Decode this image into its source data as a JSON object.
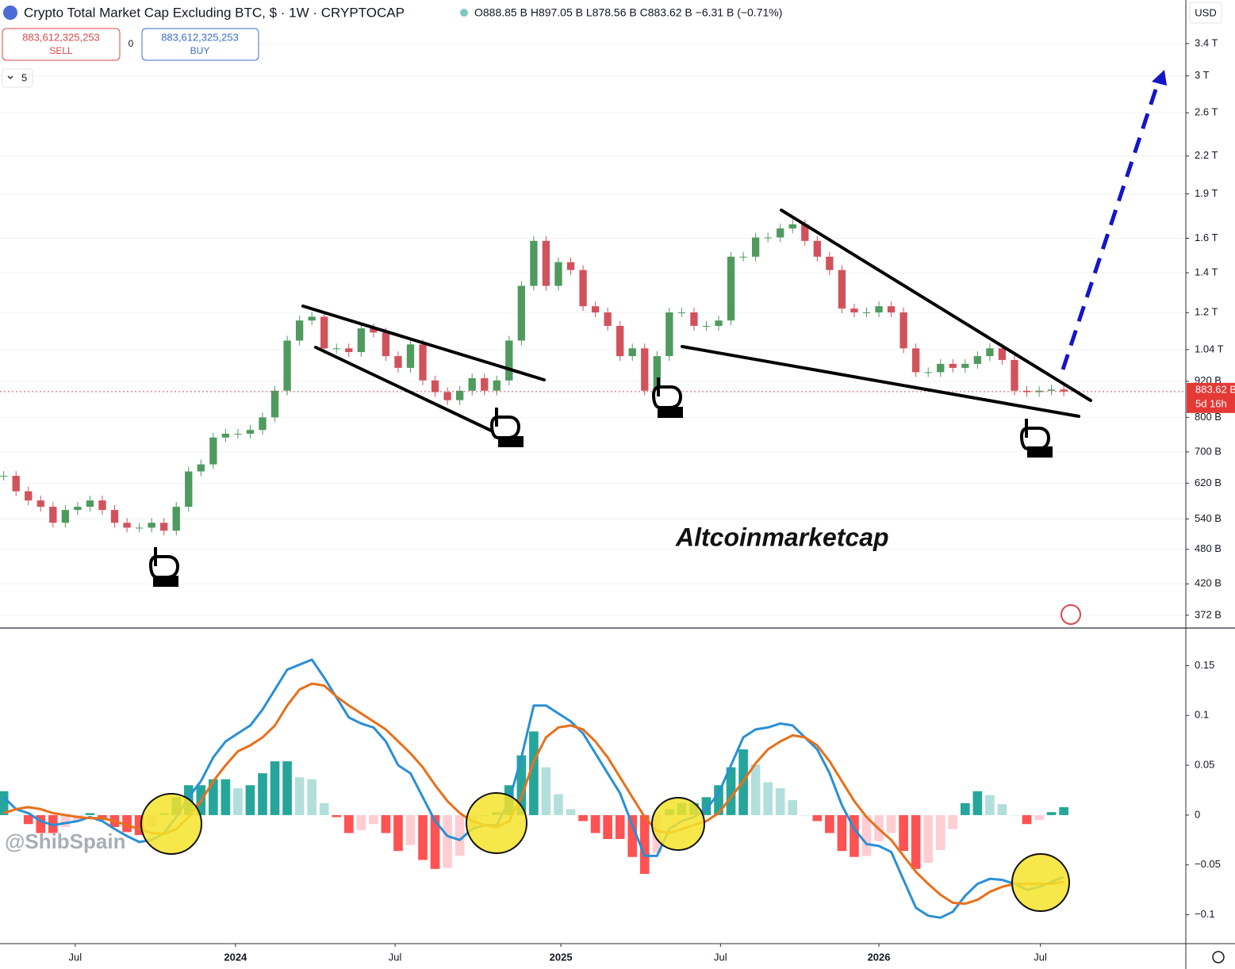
{
  "header": {
    "title": "Crypto Total Market Cap Excluding BTC, $ · 1W · CRYPTOCAP",
    "ohlc": "O888.85 B  H897.05 B  L878.56 B  C883.62 B  −6.31 B (−0.71%)",
    "sell_price": "883,612,325,253",
    "sell": "SELL",
    "spread": "0",
    "buy_price": "883,612,325,253",
    "buy": "BUY",
    "indicators": "5",
    "currency": "USD"
  },
  "watermark": "@ShibSpain",
  "chart_data": [
    {
      "type": "candlestick",
      "annotation": "Altcoinmarketcap",
      "values": [
        638,
        601,
        580,
        566,
        532,
        559,
        566,
        580,
        559,
        532,
        522,
        522,
        532,
        516,
        566,
        649,
        667,
        740,
        751,
        751,
        762,
        800,
        887,
        1077,
        1164,
        1181,
        1045,
        1045,
        1030,
        1129,
        1111,
        1014,
        969,
        1061,
        923,
        882,
        855,
        887,
        931,
        887,
        923,
        1077,
        1331,
        1584,
        1331,
        1459,
        1415,
        1230,
        1201,
        1140,
        1014,
        1045,
        887,
        1014,
        1201,
        1201,
        1140,
        1140,
        1164,
        1490,
        1490,
        1605,
        1605,
        1662,
        1689,
        1584,
        1490,
        1415,
        1219,
        1201,
        1201,
        1230,
        1201,
        1045,
        953,
        953,
        984,
        969,
        984,
        1014,
        1045,
        999,
        887,
        882,
        887,
        891,
        884
      ],
      "up_color": "#4f9a5e",
      "down_color": "#d2525c",
      "last_price_label": "883.62 B",
      "countdown": "5d 16h",
      "log_scale": true,
      "xlim": [
        -0.3,
        95.9
      ],
      "ylim": [
        354,
        4024
      ],
      "yticks": [
        {
          "value": 3400,
          "label": "3.4 T"
        },
        {
          "value": 3000,
          "label": "3 T"
        },
        {
          "value": 2600,
          "label": "2.6 T"
        },
        {
          "value": 2200,
          "label": "2.2 T"
        },
        {
          "value": 1900,
          "label": "1.9 T"
        },
        {
          "value": 1600,
          "label": "1.6 T"
        },
        {
          "value": 1400,
          "label": "1.4 T"
        },
        {
          "value": 1200,
          "label": "1.2 T"
        },
        {
          "value": 1040,
          "label": "1.04 T"
        },
        {
          "value": 920,
          "label": "920 B"
        },
        {
          "value": 800,
          "label": "800 B"
        },
        {
          "value": 700,
          "label": "700 B"
        },
        {
          "value": 620,
          "label": "620 B"
        },
        {
          "value": 540,
          "label": "540 B"
        },
        {
          "value": 480,
          "label": "480 B"
        },
        {
          "value": 420,
          "label": "420 B"
        },
        {
          "value": 372,
          "label": "372 B"
        }
      ]
    },
    {
      "type": "macd",
      "series": [
        {
          "color": "#2a8fd6",
          "values": [
            0.018,
            0.006,
            0.002,
            -0.006,
            -0.01,
            -0.008,
            -0.006,
            -0.002,
            -0.006,
            -0.014,
            -0.021,
            -0.027,
            -0.025,
            -0.018,
            -0.002,
            0.018,
            0.034,
            0.058,
            0.074,
            0.082,
            0.09,
            0.106,
            0.126,
            0.146,
            0.151,
            0.156,
            0.138,
            0.118,
            0.098,
            0.092,
            0.088,
            0.074,
            0.05,
            0.042,
            0.018,
            -0.006,
            -0.021,
            -0.025,
            -0.014,
            -0.01,
            -0.01,
            0.014,
            0.058,
            0.11,
            0.11,
            0.102,
            0.094,
            0.082,
            0.062,
            0.042,
            0.022,
            -0.01,
            -0.041,
            -0.041,
            -0.014,
            -0.006,
            -0.002,
            0.006,
            0.022,
            0.05,
            0.078,
            0.086,
            0.088,
            0.092,
            0.09,
            0.078,
            0.066,
            0.042,
            0.01,
            -0.014,
            -0.029,
            -0.031,
            -0.037,
            -0.065,
            -0.093,
            -0.101,
            -0.103,
            -0.097,
            -0.081,
            -0.069,
            -0.064,
            -0.065,
            -0.069,
            -0.075,
            -0.072,
            -0.067,
            -0.062
          ]
        },
        {
          "color": "#e8701a",
          "values": [
            0.002,
            0.006,
            0.008,
            0.006,
            0.002,
            0.0,
            -0.002,
            -0.003,
            -0.003,
            -0.006,
            -0.01,
            -0.014,
            -0.018,
            -0.019,
            -0.014,
            -0.002,
            0.014,
            0.034,
            0.05,
            0.064,
            0.07,
            0.078,
            0.09,
            0.11,
            0.126,
            0.132,
            0.13,
            0.119,
            0.11,
            0.102,
            0.094,
            0.086,
            0.074,
            0.062,
            0.048,
            0.03,
            0.014,
            0.002,
            -0.006,
            -0.01,
            -0.012,
            -0.006,
            0.018,
            0.054,
            0.078,
            0.088,
            0.09,
            0.086,
            0.074,
            0.058,
            0.038,
            0.018,
            -0.002,
            -0.016,
            -0.018,
            -0.014,
            -0.01,
            -0.006,
            0.002,
            0.018,
            0.034,
            0.052,
            0.066,
            0.074,
            0.08,
            0.078,
            0.07,
            0.054,
            0.034,
            0.014,
            -0.002,
            -0.014,
            -0.025,
            -0.041,
            -0.057,
            -0.069,
            -0.08,
            -0.088,
            -0.089,
            -0.085,
            -0.077,
            -0.072,
            -0.069,
            -0.069,
            -0.069,
            -0.069,
            -0.067
          ]
        }
      ],
      "histogram": [
        0.024,
        0.0,
        -0.009,
        -0.018,
        -0.018,
        -0.012,
        -0.006,
        0.002,
        -0.005,
        -0.012,
        -0.017,
        -0.02,
        -0.011,
        0.002,
        0.018,
        0.03,
        0.03,
        0.036,
        0.036,
        0.027,
        0.03,
        0.042,
        0.054,
        0.054,
        0.038,
        0.036,
        0.012,
        -0.002,
        -0.018,
        -0.015,
        -0.009,
        -0.018,
        -0.036,
        -0.03,
        -0.045,
        -0.054,
        -0.053,
        -0.041,
        -0.012,
        0.0,
        0.003,
        0.03,
        0.06,
        0.084,
        0.048,
        0.021,
        0.006,
        -0.006,
        -0.018,
        -0.024,
        -0.024,
        -0.042,
        -0.059,
        -0.038,
        0.006,
        0.012,
        0.012,
        0.018,
        0.03,
        0.048,
        0.066,
        0.051,
        0.033,
        0.027,
        0.015,
        0.0,
        -0.006,
        -0.018,
        -0.036,
        -0.042,
        -0.041,
        -0.026,
        -0.018,
        -0.036,
        -0.054,
        -0.048,
        -0.035,
        -0.014,
        0.012,
        0.024,
        0.02,
        0.011,
        0.0,
        -0.009,
        -0.005,
        0.003,
        0.008
      ],
      "histogram_colors": [
        "#26a69a",
        "#b2dfdb",
        "#ff5252",
        "#ffcdd2"
      ],
      "xlim": [
        -0.3,
        95.9
      ],
      "ylim": [
        -0.129,
        0.187
      ],
      "yticks": [
        0.15,
        0.1,
        0.05,
        0,
        {
          "value": -0.05,
          "label": "−0.05"
        },
        {
          "value": -0.1,
          "label": "−0.1"
        }
      ],
      "xticks": [
        {
          "value": 5.8,
          "label": "Jul"
        },
        {
          "value": 18.8,
          "label": "2024"
        },
        {
          "value": 31.75,
          "label": "Jul"
        },
        {
          "value": 45.2,
          "label": "2025"
        },
        {
          "value": 58.15,
          "label": "Jul"
        },
        {
          "value": 71,
          "label": "2026"
        },
        {
          "value": 84.1,
          "label": "Jul"
        }
      ]
    }
  ]
}
